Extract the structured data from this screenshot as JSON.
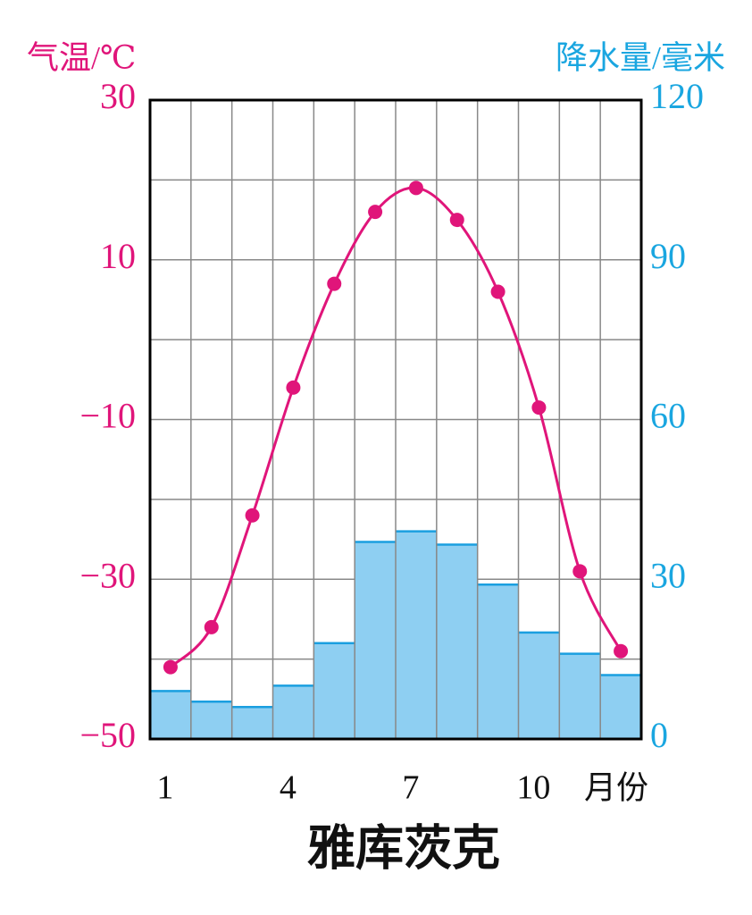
{
  "chart_data": {
    "type": "combo",
    "title": "雅库茨克",
    "x_label": "月份",
    "y_label": "气温/℃",
    "y2_label": "降水量/毫米",
    "categories": [
      "1",
      null,
      null,
      "4",
      null,
      null,
      "7",
      null,
      null,
      "10",
      null,
      null
    ],
    "series": [
      {
        "name": "降水量",
        "type": "bar",
        "axis": "y2",
        "color": "#8ecff2",
        "edge_color": "#1a9fe0",
        "values": [
          9,
          7,
          6,
          10,
          18,
          37,
          39,
          36.5,
          29,
          20,
          16,
          12
        ]
      },
      {
        "name": "气温",
        "type": "line",
        "axis": "y",
        "color": "#e0157a",
        "values": [
          -41,
          -36,
          -22,
          -6,
          7,
          16,
          19,
          15,
          6,
          -8.5,
          -29,
          -39
        ]
      }
    ],
    "ylim": [
      -50,
      30
    ],
    "yticks": [
      {
        "value": -50,
        "label": "−50"
      },
      {
        "value": -30,
        "label": "−30"
      },
      {
        "value": -10,
        "label": "−10"
      },
      10,
      30
    ],
    "y_minor_ticks": [
      -40,
      -20,
      0,
      20
    ],
    "y2lim": [
      0,
      120
    ],
    "y2ticks": [
      0,
      30,
      60,
      90,
      120
    ],
    "grid": true
  }
}
